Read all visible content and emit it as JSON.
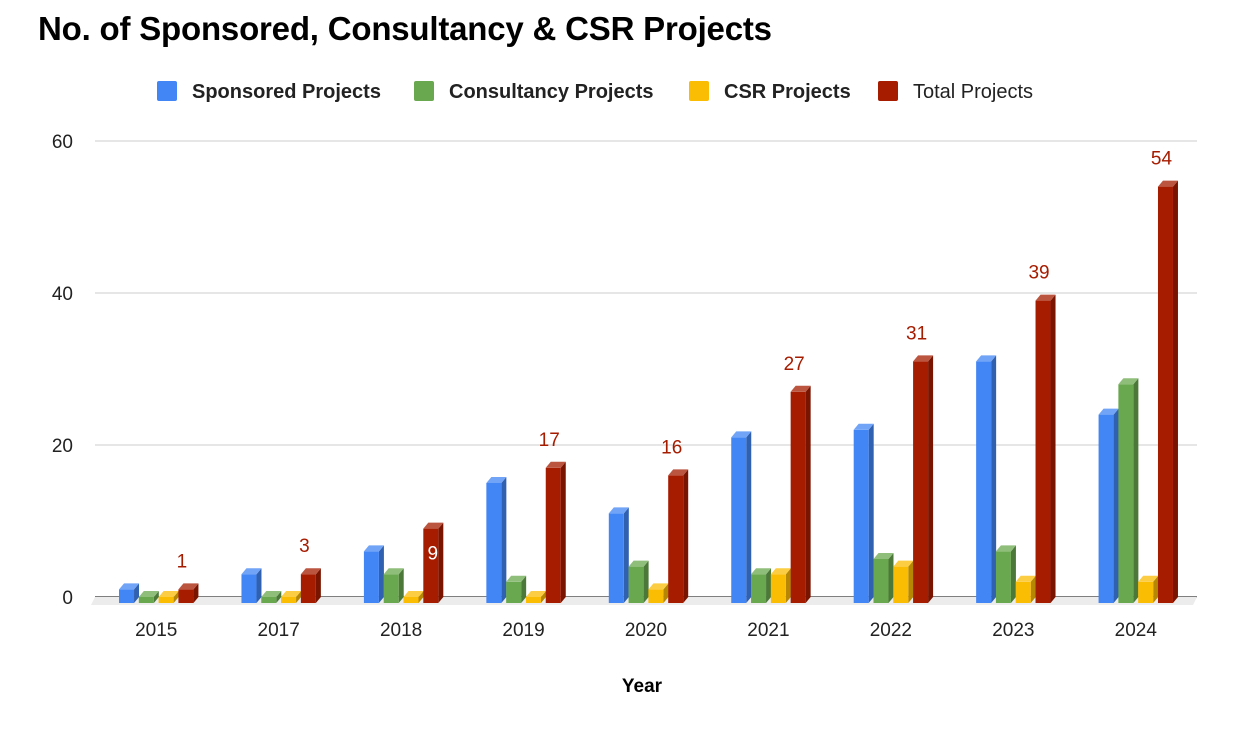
{
  "chart_data": {
    "type": "bar",
    "title": "No. of Sponsored, Consultancy & CSR Projects",
    "xlabel": "Year",
    "ylabel": "",
    "categories": [
      "2015",
      "2017",
      "2018",
      "2019",
      "2020",
      "2021",
      "2022",
      "2023",
      "2024"
    ],
    "ylim": [
      0,
      60
    ],
    "yticks": [
      0,
      20,
      40,
      60
    ],
    "grid": true,
    "legend_position": "top",
    "series": [
      {
        "name": "Sponsored Projects",
        "color": "#4285f4",
        "values": [
          1,
          3,
          6,
          15,
          11,
          21,
          22,
          31,
          24
        ]
      },
      {
        "name": "Consultancy Projects",
        "color": "#6aa84f",
        "values": [
          0,
          0,
          3,
          2,
          4,
          3,
          5,
          6,
          28
        ]
      },
      {
        "name": "CSR Projects",
        "color": "#fbbc04",
        "values": [
          0,
          0,
          0,
          0,
          1,
          3,
          4,
          2,
          2
        ]
      },
      {
        "name": "Total Projects",
        "color": "#a61c00",
        "values": [
          1,
          3,
          9,
          17,
          16,
          27,
          31,
          39,
          54
        ],
        "data_labels": [
          "1",
          "3",
          "9",
          "17",
          "16",
          "27",
          "31",
          "39",
          "54"
        ]
      }
    ]
  }
}
